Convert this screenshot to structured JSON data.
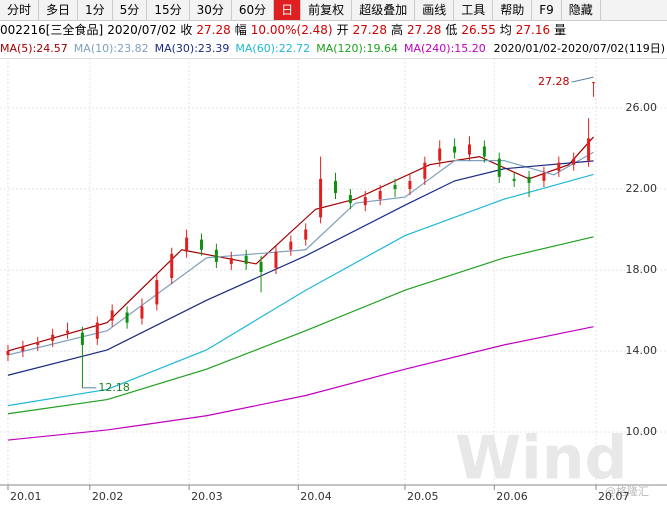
{
  "toolbar": [
    "分时",
    "多日",
    "1分",
    "5分",
    "15分",
    "30分",
    "60分",
    "日",
    "前复权",
    "超级叠加",
    "画线",
    "工具",
    "帮助",
    "F9",
    "隐藏"
  ],
  "toolbar_selected": 7,
  "header": {
    "code": "002216[三全食品]",
    "date": "2020/07/02",
    "fields": [
      {
        "label": "收",
        "value": "27.28"
      },
      {
        "label": "幅",
        "value": "10.00%(2.48)"
      },
      {
        "label": "开",
        "value": "27.28"
      },
      {
        "label": "高",
        "value": "27.28"
      },
      {
        "label": "低",
        "value": "26.55"
      },
      {
        "label": "均",
        "value": "27.16"
      },
      {
        "label": "量",
        "value": ""
      }
    ]
  },
  "chart_data": {
    "type": "candlestick",
    "date_range": "2020/01/02-2020/07/02(119日)",
    "xlim": [
      -0.8,
      132.8
    ],
    "xticks": [
      {
        "value": 0,
        "label": "20.01"
      },
      {
        "value": 16.5,
        "label": "20.02"
      },
      {
        "value": 36.5,
        "label": "20.03"
      },
      {
        "value": 58.5,
        "label": "20.04"
      },
      {
        "value": 80,
        "label": "20.05"
      },
      {
        "value": 98,
        "label": "20.06"
      },
      {
        "value": 118.5,
        "label": "20.07"
      }
    ],
    "ylim": [
      7.38,
      28.47
    ],
    "yticks": [
      {
        "value": 10,
        "label": "10.00"
      },
      {
        "value": 14,
        "label": "14.00"
      },
      {
        "value": 18,
        "label": "18.00"
      },
      {
        "value": 22,
        "label": "22.00"
      },
      {
        "value": 26,
        "label": "26.00"
      }
    ],
    "grid": true,
    "up_color": "#e02020",
    "down_color": "#109010",
    "candles": {
      "x": [
        0,
        3,
        6,
        9,
        12,
        15,
        18,
        21,
        24,
        27,
        30,
        33,
        36,
        39,
        42,
        45,
        48,
        51,
        54,
        57,
        60,
        63,
        66,
        69,
        72,
        75,
        78,
        81,
        84,
        87,
        90,
        93,
        96,
        99,
        102,
        105,
        108,
        111,
        114,
        117,
        118
      ],
      "open": [
        13.8,
        14.0,
        14.3,
        14.5,
        14.9,
        14.9,
        14.6,
        15.5,
        15.9,
        15.6,
        16.3,
        17.6,
        18.9,
        19.5,
        19.0,
        18.3,
        18.7,
        18.4,
        18.1,
        19.0,
        19.5,
        20.6,
        22.4,
        21.7,
        21.2,
        21.5,
        22.2,
        22.0,
        22.5,
        23.4,
        24.1,
        23.7,
        24.1,
        23.5,
        22.5,
        22.6,
        22.4,
        22.9,
        23.2,
        23.4,
        27.28
      ],
      "high": [
        14.3,
        14.5,
        14.7,
        15.1,
        15.4,
        15.2,
        15.7,
        16.3,
        16.2,
        16.6,
        17.8,
        19.1,
        20.0,
        19.8,
        19.3,
        18.9,
        19.0,
        18.7,
        19.2,
        19.7,
        20.3,
        23.6,
        22.8,
        22.0,
        21.9,
        22.2,
        22.5,
        22.7,
        23.6,
        24.4,
        24.5,
        24.6,
        24.4,
        23.8,
        22.8,
        22.9,
        23.1,
        23.6,
        23.8,
        25.5,
        27.28
      ],
      "low": [
        13.5,
        13.7,
        14.0,
        14.2,
        14.6,
        12.18,
        14.3,
        15.2,
        15.1,
        15.3,
        16.0,
        17.3,
        18.6,
        18.7,
        18.1,
        18.0,
        18.0,
        16.9,
        17.8,
        18.7,
        19.2,
        20.3,
        21.5,
        21.0,
        20.9,
        21.2,
        21.6,
        21.7,
        22.2,
        23.1,
        23.5,
        23.4,
        23.3,
        22.3,
        22.1,
        21.6,
        22.1,
        22.6,
        22.9,
        23.1,
        26.55
      ],
      "close": [
        14.0,
        14.2,
        14.4,
        14.8,
        15.0,
        14.3,
        15.4,
        16.0,
        15.4,
        16.2,
        17.5,
        18.8,
        19.6,
        19.0,
        18.4,
        18.6,
        18.3,
        17.9,
        18.9,
        19.4,
        20.0,
        22.5,
        21.8,
        21.3,
        21.6,
        21.9,
        22.0,
        22.4,
        23.3,
        24.0,
        23.8,
        24.2,
        23.6,
        22.6,
        22.4,
        22.3,
        22.8,
        23.3,
        23.5,
        24.5,
        27.28
      ]
    },
    "series": [
      {
        "name": "MA(5):24.57",
        "color": "#a00000",
        "x": [
          0,
          20,
          35,
          50,
          62,
          70,
          85,
          95,
          105,
          113,
          118
        ],
        "values": [
          14.0,
          15.4,
          19.0,
          18.3,
          21.0,
          21.5,
          23.2,
          23.6,
          22.5,
          23.2,
          24.57
        ]
      },
      {
        "name": "MA(10):23.82",
        "color": "#7fa0c0",
        "x": [
          0,
          20,
          40,
          60,
          70,
          80,
          90,
          100,
          110,
          118
        ],
        "values": [
          13.8,
          15.0,
          18.6,
          19.0,
          21.3,
          21.6,
          23.4,
          23.4,
          22.7,
          23.82
        ]
      },
      {
        "name": "MA(30):23.39",
        "color": "#1a2a80",
        "x": [
          0,
          20,
          40,
          60,
          80,
          90,
          100,
          118
        ],
        "values": [
          12.8,
          14.05,
          16.5,
          18.7,
          21.2,
          22.4,
          23.0,
          23.39
        ]
      },
      {
        "name": "MA(60):22.72",
        "color": "#20b8d8",
        "x": [
          0,
          20,
          40,
          60,
          80,
          100,
          118
        ],
        "values": [
          11.3,
          12.1,
          14.05,
          17.0,
          19.7,
          21.5,
          22.72
        ]
      },
      {
        "name": "MA(120):19.64",
        "color": "#20a020",
        "x": [
          0,
          20,
          40,
          60,
          80,
          100,
          118
        ],
        "values": [
          10.9,
          11.6,
          13.1,
          15.0,
          17.0,
          18.6,
          19.64
        ]
      },
      {
        "name": "MA(240):15.20",
        "color": "#c000c0",
        "x": [
          0,
          20,
          40,
          60,
          80,
          100,
          118
        ],
        "values": [
          9.6,
          10.1,
          10.8,
          11.8,
          13.1,
          14.3,
          15.2
        ]
      }
    ],
    "max_label": "27.28",
    "min_label": "12.18",
    "watermark": "Wind",
    "source": "@格隆汇"
  }
}
